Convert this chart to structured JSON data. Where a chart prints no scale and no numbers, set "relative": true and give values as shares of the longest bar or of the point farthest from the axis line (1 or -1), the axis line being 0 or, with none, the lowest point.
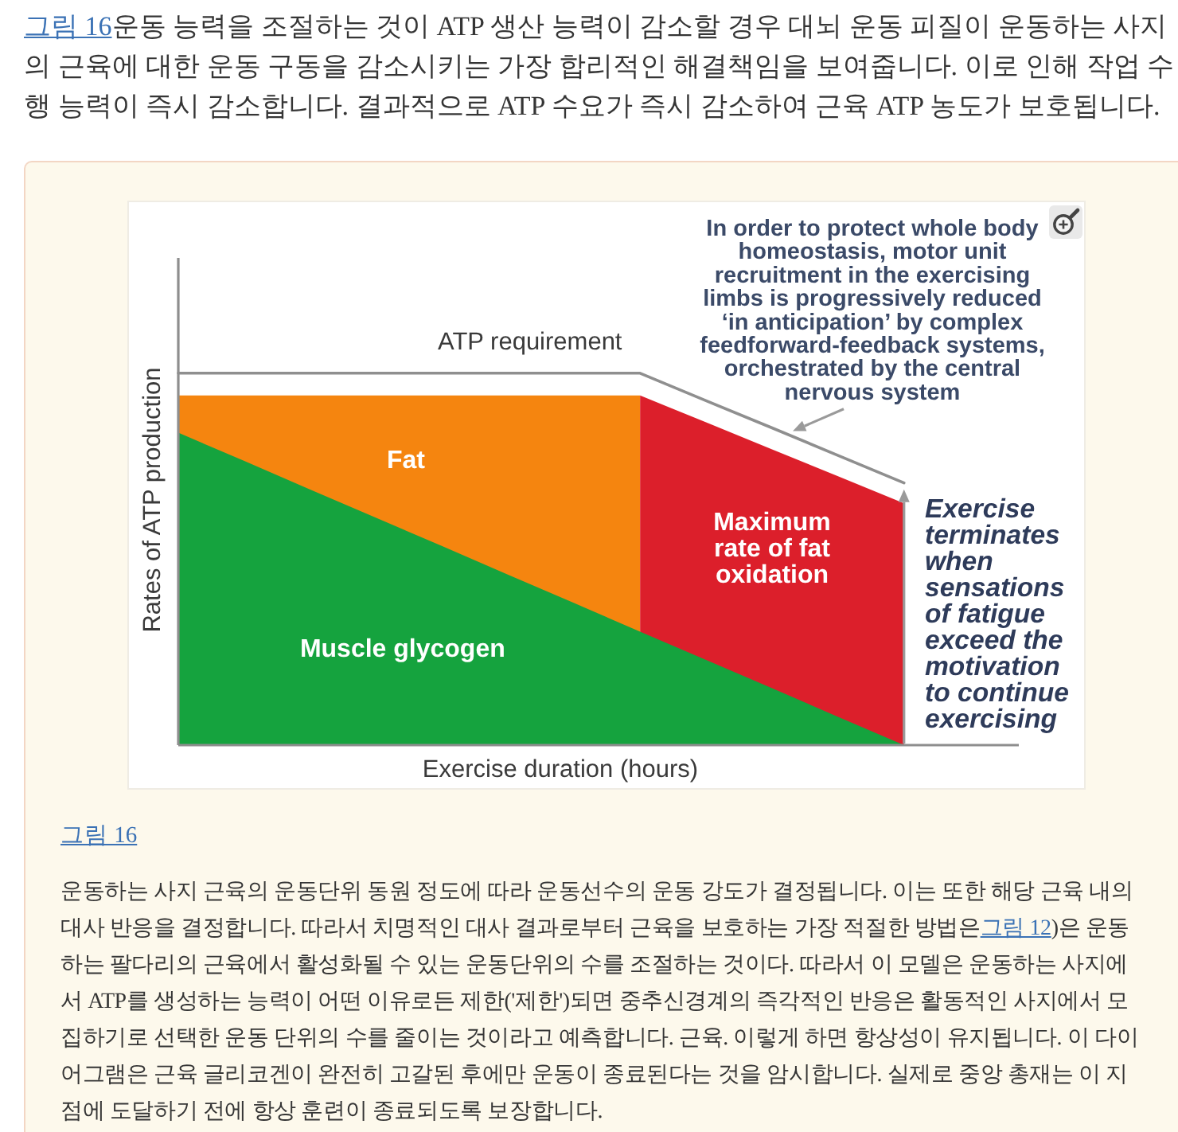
{
  "chart_data": {
    "type": "area",
    "relative": true,
    "categories": [
      null,
      null,
      null,
      null,
      null,
      null,
      null,
      null,
      null,
      null,
      null,
      null
    ],
    "xlabel": "Exercise duration (hours)",
    "ylabel": "Rates of ATP production",
    "series": [
      {
        "name": "Fat",
        "color": "#f5850f",
        "values": [
          0.94,
          0.94,
          0.94,
          0.94,
          0.94,
          0.94,
          0.94,
          0.94,
          null,
          null,
          null,
          null
        ]
      },
      {
        "name": "Maximum rate of fat oxidation",
        "color": "#dc1f2b",
        "values": [
          null,
          null,
          null,
          null,
          null,
          null,
          null,
          0.94,
          0.868,
          0.795,
          0.723,
          0.65
        ]
      },
      {
        "name": "Muscle glycogen",
        "color": "#15a33e",
        "values": [
          0.84,
          0.764,
          0.687,
          0.611,
          0.535,
          0.458,
          0.382,
          0.305,
          0.229,
          0.153,
          0.076,
          0
        ]
      },
      {
        "name": "ATP requirement",
        "type": "line",
        "color": "#8f8f8f",
        "values": [
          1,
          1,
          1,
          1,
          1,
          1,
          1,
          1,
          0.926,
          0.853,
          0.779,
          0.705
        ]
      }
    ],
    "annotations": [
      "그림 16",
      "운동 능력을 조절하는 것이 ATP 생산 능력이 감소할 경우 대뇌 운동 피질이 운동하는 사지의 근육에 대한 운동 구동을 감소시키는 가장 합리적인 해결책임을 보여줍니다. 이로 인해 작업 수행 능력이 즉시 감소합니다. 결과적으로 ATP 수요가 즉시 감소하여 근육 ATP 농도가 보호됩니다.",
      "In order to protect whole body\nhomeostasis, motor unit\nrecruitment in the exercising\nlimbs is progressively reduced\n‘in anticipation’ by complex\nfeedforward-feedback systems,\norchestrated by the central\nnervous system",
      "Exercise\nterminates\nwhen\nsensations\nof fatigue\nexceed the\nmotivation\nto continue\nexercising",
      "그림 16",
      "운동하는 사지 근육의 운동단위 동원 정도에 따라 운동선수의 운동 강도가 결정됩니다. 이는 또한 해당 근육 내의 대사 반응을 결정합니다. 따라서 치명적인 대사 결과로부터 근육을 보호하는 가장 적절한 방법은",
      "그림 12",
      ")은 운동하는 팔다리의 근육에서 활성화될 수 있는 운동단위의 수를 조절하는 것이다. 따라서 이 모델은 운동하는 사지에서 ATP를 생성하는 능력이 어떤 이유로든 제한('제한')되면 중추신경계의 즉각적인 반응은 활동적인 사지에서 모집하기로 선택한 운동 단위의 수를 줄이는 것이라고 예측합니다. 근육. 이렇게 하면 항상성이 유지됩니다. 이 다이어그램은 근육 글리코겐이 완전히 고갈된 후에만 운동이 종료된다는 것을 암시합니다. 실제로 중앙 총재는 이 지점에 도달하기 전에 항상 훈련이 종료되도록 보장합니다."
    ]
  }
}
